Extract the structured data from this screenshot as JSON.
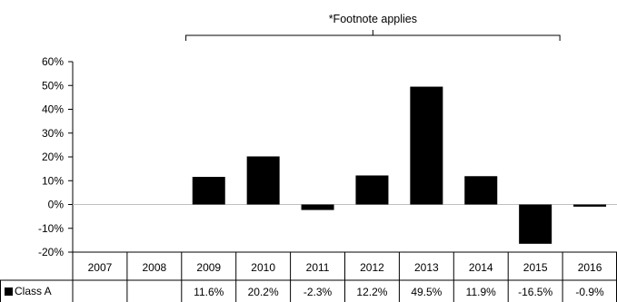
{
  "chart_data": {
    "type": "bar",
    "categories": [
      "2007",
      "2008",
      "2009",
      "2010",
      "2011",
      "2012",
      "2013",
      "2014",
      "2015",
      "2016"
    ],
    "series": [
      {
        "name": "Class A",
        "values": [
          null,
          null,
          11.6,
          20.2,
          -2.3,
          12.2,
          49.5,
          11.9,
          -16.5,
          -0.9
        ],
        "labels": [
          "",
          "",
          "11.6%",
          "20.2%",
          "-2.3%",
          "12.2%",
          "49.5%",
          "11.9%",
          "-16.5%",
          "-0.9%"
        ],
        "color": "#000000"
      }
    ],
    "ylim": [
      -20,
      60
    ],
    "yticks": [
      -20,
      -10,
      0,
      10,
      20,
      30,
      40,
      50,
      60
    ],
    "ytick_labels": [
      "-20%",
      "-10%",
      "0%",
      "10%",
      "20%",
      "30%",
      "40%",
      "50%",
      "60%"
    ],
    "grid": false,
    "legend": "data-table-row",
    "annotation": {
      "text": "*Footnote applies",
      "bracket_from": "2009",
      "bracket_to": "2015"
    }
  }
}
